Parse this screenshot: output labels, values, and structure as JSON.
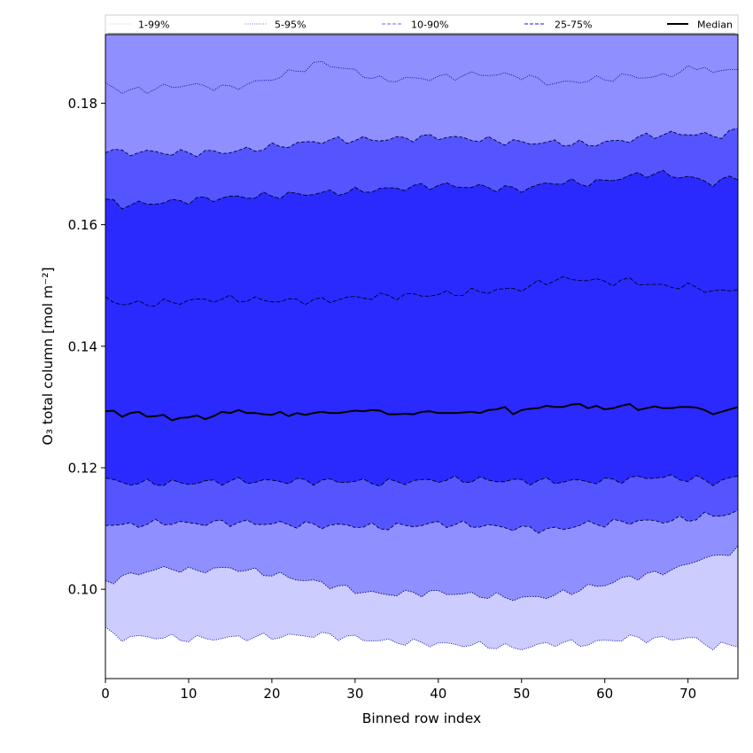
{
  "chart_data": {
    "type": "area",
    "title": "",
    "xlabel": "Binned row index",
    "ylabel": "O₃ total column [mol m⁻²]",
    "xlim": [
      0,
      76
    ],
    "ylim": [
      0.0853,
      0.1913
    ],
    "xticks": [
      0,
      10,
      20,
      30,
      40,
      50,
      60,
      70
    ],
    "yticks": [
      0.1,
      0.12,
      0.14,
      0.16,
      0.18
    ],
    "ytick_labels": [
      "0.10",
      "0.12",
      "0.14",
      "0.16",
      "0.18"
    ],
    "legend_position": "top",
    "legend": [
      {
        "label": "1-99%",
        "style": "dotted",
        "color": "#d0d0f8"
      },
      {
        "label": "5-95%",
        "style": "dotted",
        "color": "#8f8fee"
      },
      {
        "label": "10-90%",
        "style": "dashed",
        "color": "#8888ff"
      },
      {
        "label": "25-75%",
        "style": "dashed",
        "color": "#4646dd"
      },
      {
        "label": "Median",
        "style": "solid",
        "color": "#000000"
      }
    ],
    "x_knots": [
      0,
      2,
      5,
      8,
      10,
      15,
      20,
      26,
      30,
      33,
      40,
      45,
      50,
      54,
      58,
      60,
      63,
      66,
      70,
      72,
      73,
      76
    ],
    "bands": [
      {
        "name": "1-99%",
        "fill": "#ccccff",
        "edge": "#0000aa",
        "dash": "1,1.5",
        "lower": [
          0.0932,
          0.092,
          0.0922,
          0.092,
          0.0918,
          0.092,
          0.0922,
          0.0925,
          0.092,
          0.0915,
          0.091,
          0.0908,
          0.0903,
          0.0912,
          0.091,
          0.0915,
          0.092,
          0.0918,
          0.092,
          0.0912,
          0.0905,
          0.091
        ],
        "upper": [
          0.1832,
          0.182,
          0.1822,
          0.1828,
          0.183,
          0.1825,
          0.184,
          0.1867,
          0.1852,
          0.1838,
          0.1842,
          0.1848,
          0.1845,
          0.1832,
          0.1838,
          0.184,
          0.1845,
          0.1842,
          0.1855,
          0.1862,
          0.1848,
          0.186
        ]
      },
      {
        "name": "5-95%",
        "fill": "#8f8fff",
        "edge": "#000066",
        "dash": "1.5,1.5",
        "lower": [
          0.1012,
          0.102,
          0.103,
          0.1035,
          0.103,
          0.1035,
          0.1025,
          0.101,
          0.0998,
          0.0992,
          0.0995,
          0.099,
          0.0985,
          0.099,
          0.1003,
          0.1008,
          0.102,
          0.1025,
          0.104,
          0.1055,
          0.105,
          0.1068
        ]
      },
      {
        "name": "10-90%",
        "fill": "#5555ff",
        "edge": "#000044",
        "dash": "4,2",
        "lower": [
          0.1108,
          0.1105,
          0.1108,
          0.111,
          0.1108,
          0.111,
          0.1108,
          0.1105,
          0.1105,
          0.1102,
          0.1108,
          0.1105,
          0.11,
          0.1098,
          0.1108,
          0.1108,
          0.1112,
          0.1112,
          0.1115,
          0.1122,
          0.112,
          0.1128
        ],
        "upper": [
          0.1725,
          0.1718,
          0.172,
          0.1718,
          0.1718,
          0.172,
          0.1728,
          0.1738,
          0.174,
          0.174,
          0.1745,
          0.174,
          0.1735,
          0.1735,
          0.1732,
          0.1735,
          0.174,
          0.1748,
          0.175,
          0.1748,
          0.1745,
          0.1755
        ]
      },
      {
        "name": "25-75%",
        "fill": "#2a2aff",
        "edge": "#000022",
        "dash": "5,2",
        "lower": [
          0.1182,
          0.1175,
          0.1175,
          0.1175,
          0.1175,
          0.1178,
          0.1178,
          0.1178,
          0.1178,
          0.1175,
          0.118,
          0.118,
          0.1178,
          0.1178,
          0.1178,
          0.1178,
          0.1182,
          0.1185,
          0.1182,
          0.118,
          0.1175,
          0.1185
        ],
        "upper": [
          0.164,
          0.1632,
          0.1635,
          0.1638,
          0.164,
          0.1645,
          0.1648,
          0.1652,
          0.1655,
          0.1658,
          0.1665,
          0.1662,
          0.1658,
          0.167,
          0.1668,
          0.1672,
          0.168,
          0.1685,
          0.1678,
          0.1672,
          0.1668,
          0.168
        ]
      }
    ],
    "inner_line": {
      "name": "25-75% lower edge of upper band",
      "edge": "#000022",
      "dash": "5,2",
      "values": [
        0.1478,
        0.147,
        0.147,
        0.1472,
        0.1475,
        0.1478,
        0.1475,
        0.1475,
        0.148,
        0.1482,
        0.1485,
        0.149,
        0.1495,
        0.151,
        0.151,
        0.1505,
        0.1508,
        0.15,
        0.1498,
        0.1495,
        0.1488,
        0.1495
      ]
    },
    "median": {
      "name": "Median",
      "color": "#000000",
      "x": [
        0,
        1,
        2,
        3,
        4,
        5,
        6,
        7,
        8,
        9,
        10,
        11,
        12,
        13,
        14,
        15,
        16,
        17,
        18,
        19,
        20,
        21,
        22,
        23,
        24,
        25,
        26,
        27,
        28,
        29,
        30,
        31,
        32,
        33,
        34,
        35,
        36,
        37,
        38,
        39,
        40,
        41,
        42,
        43,
        44,
        45,
        46,
        47,
        48,
        49,
        50,
        51,
        52,
        53,
        54,
        55,
        56,
        57,
        58,
        59,
        60,
        61,
        62,
        63,
        64,
        65,
        66,
        67,
        68,
        69,
        70,
        71,
        72,
        73,
        74,
        75,
        76
      ],
      "values": [
        0.1293,
        0.1294,
        0.1284,
        0.129,
        0.1292,
        0.1284,
        0.1285,
        0.1287,
        0.1278,
        0.1282,
        0.1283,
        0.1286,
        0.128,
        0.1285,
        0.1292,
        0.129,
        0.1295,
        0.129,
        0.129,
        0.1288,
        0.1287,
        0.1292,
        0.1285,
        0.129,
        0.1287,
        0.129,
        0.1292,
        0.129,
        0.129,
        0.1292,
        0.1294,
        0.1293,
        0.1295,
        0.1294,
        0.1288,
        0.1288,
        0.1289,
        0.1288,
        0.1292,
        0.1293,
        0.129,
        0.129,
        0.129,
        0.1291,
        0.1292,
        0.129,
        0.1295,
        0.1296,
        0.13,
        0.1288,
        0.1295,
        0.1297,
        0.1298,
        0.1302,
        0.13,
        0.13,
        0.1304,
        0.1305,
        0.1298,
        0.1302,
        0.1296,
        0.1298,
        0.1302,
        0.1305,
        0.1295,
        0.1298,
        0.1301,
        0.1298,
        0.1298,
        0.13,
        0.13,
        0.1299,
        0.1295,
        0.1288,
        0.1292,
        0.1296,
        0.13
      ]
    }
  }
}
